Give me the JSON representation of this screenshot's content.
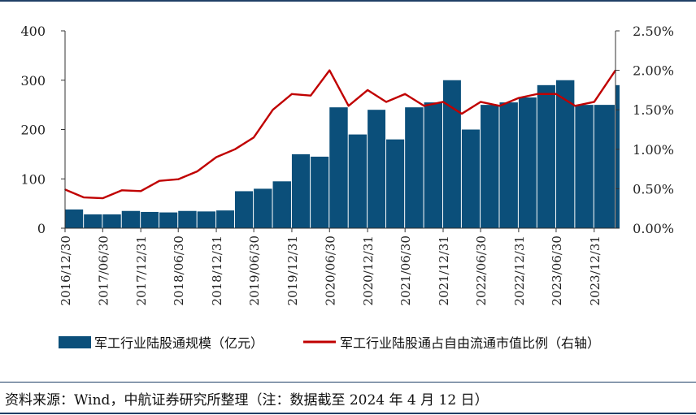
{
  "chart_data": {
    "type": "bar",
    "series": [
      {
        "name": "军工行业陆股通规模（亿元）",
        "type": "bar",
        "axis": "left",
        "color": "#0b4f7a",
        "dates": [
          "2016-12-30",
          "2017-03-31",
          "2017-06-30",
          "2017-09-30",
          "2017-12-31",
          "2018-03-31",
          "2018-06-30",
          "2018-09-30",
          "2018-12-31",
          "2019-03-31",
          "2019-06-30",
          "2019-09-30",
          "2019-12-31",
          "2020-03-31",
          "2020-06-30",
          "2020-09-30",
          "2020-12-31",
          "2021-03-31",
          "2021-06-30",
          "2021-09-30",
          "2021-12-31",
          "2022-03-31",
          "2022-06-30",
          "2022-09-30",
          "2022-12-31",
          "2023-03-31",
          "2023-06-30",
          "2023-09-30",
          "2023-12-31",
          "2024-04-12"
        ],
        "values": [
          38,
          28,
          28,
          35,
          33,
          32,
          35,
          34,
          36,
          75,
          80,
          95,
          150,
          145,
          245,
          190,
          240,
          180,
          245,
          255,
          300,
          200,
          250,
          255,
          265,
          290,
          300,
          250,
          250,
          290
        ]
      },
      {
        "name": "军工行业陆股通占自由流通市值比例（右轴）",
        "type": "line",
        "axis": "right",
        "color": "#c00000",
        "dates": [
          "2016-12-30",
          "2017-03-31",
          "2017-06-30",
          "2017-09-30",
          "2017-12-31",
          "2018-03-31",
          "2018-06-30",
          "2018-09-30",
          "2018-12-31",
          "2019-03-31",
          "2019-06-30",
          "2019-09-30",
          "2019-12-31",
          "2020-03-31",
          "2020-06-30",
          "2020-09-30",
          "2020-12-31",
          "2021-03-31",
          "2021-06-30",
          "2021-09-30",
          "2021-12-31",
          "2022-03-31",
          "2022-06-30",
          "2022-09-30",
          "2022-12-31",
          "2023-03-31",
          "2023-06-30",
          "2023-09-30",
          "2023-12-31",
          "2024-04-12"
        ],
        "values": [
          0.0049,
          0.0039,
          0.0038,
          0.0048,
          0.0047,
          0.006,
          0.0062,
          0.0072,
          0.009,
          0.01,
          0.0115,
          0.015,
          0.017,
          0.0168,
          0.02,
          0.0155,
          0.0175,
          0.016,
          0.017,
          0.0155,
          0.016,
          0.0145,
          0.016,
          0.0155,
          0.0165,
          0.017,
          0.017,
          0.0155,
          0.016,
          0.02
        ]
      }
    ],
    "x_ticks": [
      "2016/12/30",
      "2017/06/30",
      "2017/12/31",
      "2018/06/30",
      "2018/12/31",
      "2019/06/30",
      "2019/12/31",
      "2020/06/30",
      "2020/12/31",
      "2021/06/30",
      "2021/12/31",
      "2022/06/30",
      "2022/12/31",
      "2023/06/30",
      "2023/12/31"
    ],
    "y_left_ticks": [
      "0",
      "100",
      "200",
      "300",
      "400"
    ],
    "y_left_range": [
      0,
      400
    ],
    "y_right_ticks": [
      "0.00%",
      "0.50%",
      "1.00%",
      "1.50%",
      "2.00%",
      "2.50%"
    ],
    "y_right_range": [
      0,
      0.025
    ],
    "x_range": [
      "2016-12-30",
      "2024-04-12"
    ],
    "grid": false,
    "legend_position": "bottom",
    "title": "",
    "xlabel": "",
    "ylabel": ""
  },
  "legend": {
    "bar_label": "军工行业陆股通规模（亿元）",
    "line_label": "军工行业陆股通占自由流通市值比例（右轴）"
  },
  "source": "资料来源：Wind，中航证券研究所整理（注：数据截至 2024 年 4 月 12 日）",
  "colors": {
    "bar": "#0b4f7a",
    "line": "#c00000",
    "rule": "#1f3f66"
  }
}
